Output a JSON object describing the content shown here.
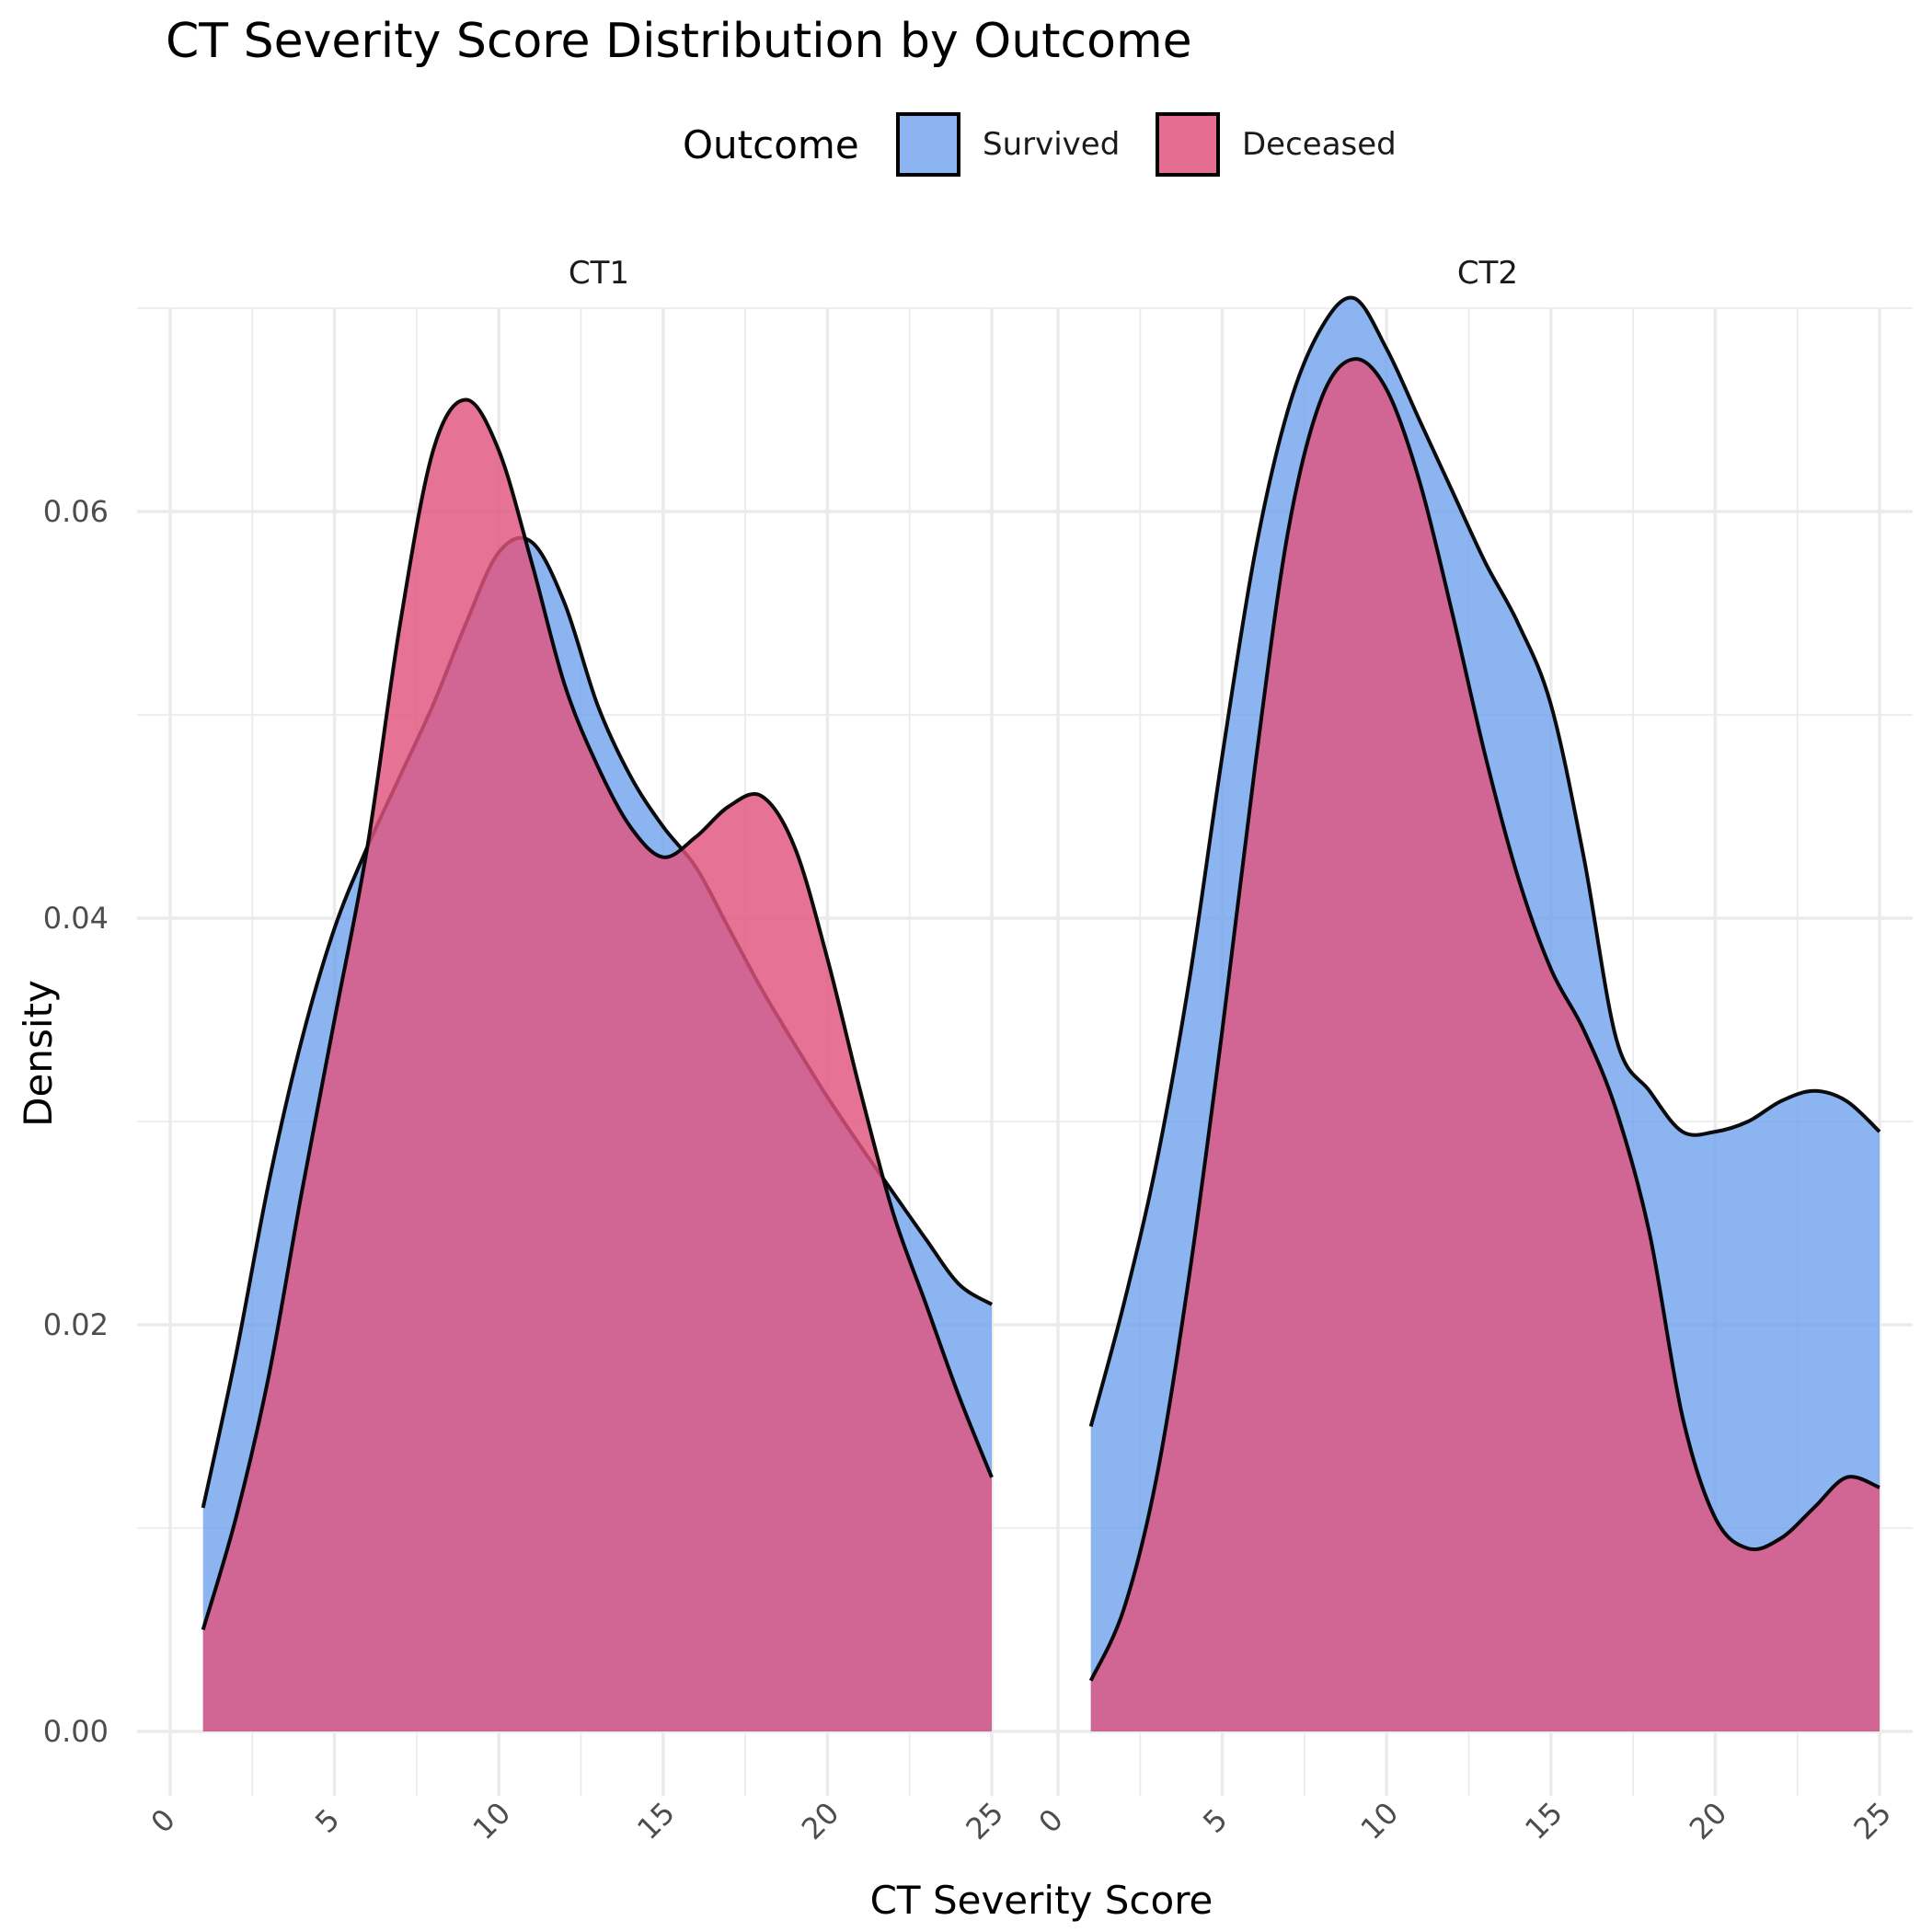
{
  "chart_data": {
    "type": "area",
    "title": "CT Severity Score Distribution by Outcome",
    "xlabel": "CT Severity Score",
    "ylabel": "Density",
    "xlim": [
      0,
      25
    ],
    "ylim": [
      0,
      0.07
    ],
    "x_ticks": [
      "0",
      "5",
      "10",
      "15",
      "20",
      "25"
    ],
    "y_ticks": [
      "0.00",
      "0.02",
      "0.04",
      "0.06"
    ],
    "grid": true,
    "legend": {
      "title": "Outcome",
      "position": "top",
      "entries": [
        {
          "name": "Survived",
          "color": "#6fa1ee"
        },
        {
          "name": "Deceased",
          "color": "#e0537e"
        }
      ]
    },
    "panels": [
      {
        "label": "CT1",
        "series": [
          {
            "name": "Survived",
            "x": [
              1,
              2,
              3,
              4,
              5,
              6,
              7,
              8,
              9,
              10,
              11,
              12,
              13,
              14,
              15,
              16,
              17,
              18,
              19,
              20,
              21,
              22,
              23,
              24,
              25
            ],
            "y": [
              0.011,
              0.0185,
              0.027,
              0.034,
              0.0395,
              0.0435,
              0.047,
              0.0505,
              0.0545,
              0.058,
              0.0585,
              0.0555,
              0.0505,
              0.047,
              0.0445,
              0.0425,
              0.0395,
              0.0365,
              0.0338,
              0.0312,
              0.0288,
              0.0265,
              0.0242,
              0.022,
              0.021
            ]
          },
          {
            "name": "Deceased",
            "x": [
              1,
              2,
              3,
              4,
              5,
              6,
              7,
              8,
              9,
              10,
              11,
              12,
              13,
              14,
              15,
              16,
              17,
              18,
              19,
              20,
              21,
              22,
              23,
              24,
              25
            ],
            "y": [
              0.005,
              0.0105,
              0.0175,
              0.0265,
              0.035,
              0.0435,
              0.0545,
              0.063,
              0.0655,
              0.063,
              0.0575,
              0.0515,
              0.0475,
              0.0445,
              0.043,
              0.044,
              0.0455,
              0.046,
              0.0435,
              0.038,
              0.0315,
              0.0255,
              0.021,
              0.0165,
              0.0125
            ]
          }
        ]
      },
      {
        "label": "CT2",
        "series": [
          {
            "name": "Survived",
            "x": [
              1,
              2,
              3,
              4,
              5,
              6,
              7,
              8,
              9,
              10,
              11,
              12,
              13,
              14,
              15,
              16,
              17,
              18,
              19,
              20,
              21,
              22,
              23,
              24,
              25
            ],
            "y": [
              0.015,
              0.021,
              0.028,
              0.037,
              0.048,
              0.058,
              0.065,
              0.069,
              0.0705,
              0.068,
              0.0645,
              0.061,
              0.0575,
              0.0545,
              0.0505,
              0.043,
              0.034,
              0.0315,
              0.0295,
              0.0295,
              0.03,
              0.031,
              0.0315,
              0.031,
              0.0295
            ]
          },
          {
            "name": "Deceased",
            "x": [
              1,
              2,
              3,
              4,
              5,
              6,
              7,
              8,
              9,
              10,
              11,
              12,
              13,
              14,
              15,
              16,
              17,
              18,
              19,
              20,
              21,
              22,
              23,
              24,
              25
            ],
            "y": [
              0.0025,
              0.006,
              0.0125,
              0.0225,
              0.0345,
              0.0475,
              0.059,
              0.0655,
              0.0675,
              0.066,
              0.0615,
              0.055,
              0.048,
              0.042,
              0.0375,
              0.0345,
              0.0305,
              0.0245,
              0.0155,
              0.0105,
              0.009,
              0.0095,
              0.011,
              0.0125,
              0.012
            ]
          }
        ]
      }
    ]
  }
}
